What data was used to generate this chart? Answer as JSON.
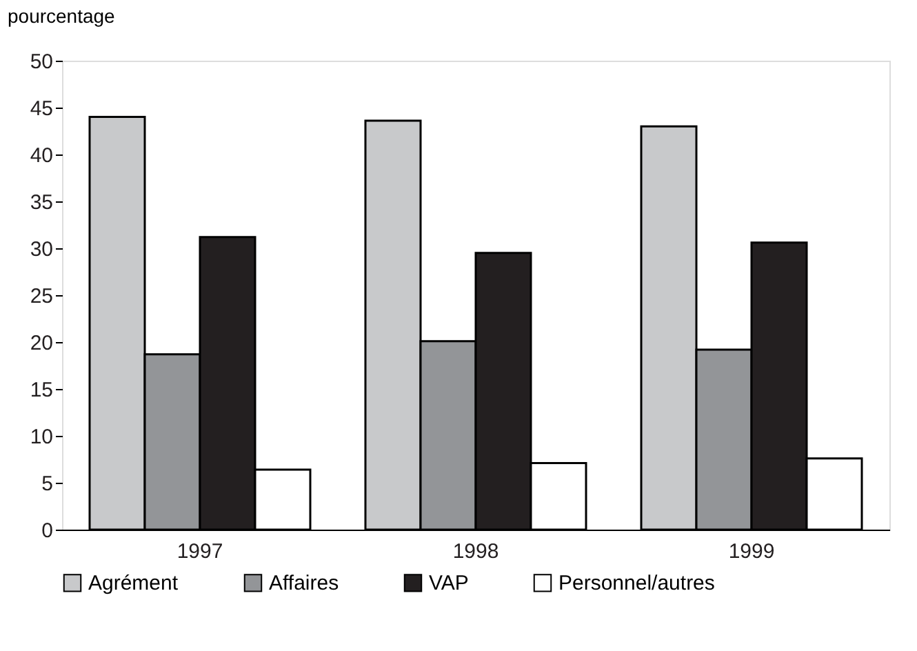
{
  "chart_data": {
    "type": "bar",
    "ylabel": "pourcentage",
    "categories": [
      "1997",
      "1998",
      "1999"
    ],
    "series": [
      {
        "name": "Agrément",
        "color": "#c8c9cb",
        "values": [
          44.0,
          43.6,
          43.0
        ]
      },
      {
        "name": "Affaires",
        "color": "#939598",
        "values": [
          18.7,
          20.1,
          19.2
        ]
      },
      {
        "name": "VAP",
        "color": "#231f20",
        "values": [
          31.2,
          29.5,
          30.6
        ]
      },
      {
        "name": "Personnel/autres",
        "color": "#ffffff",
        "values": [
          6.4,
          7.1,
          7.6
        ]
      }
    ],
    "ylim": [
      0,
      50
    ],
    "yticks": [
      0,
      5,
      10,
      15,
      20,
      25,
      30,
      35,
      40,
      45,
      50
    ],
    "grid": false,
    "legend": "bottom"
  }
}
